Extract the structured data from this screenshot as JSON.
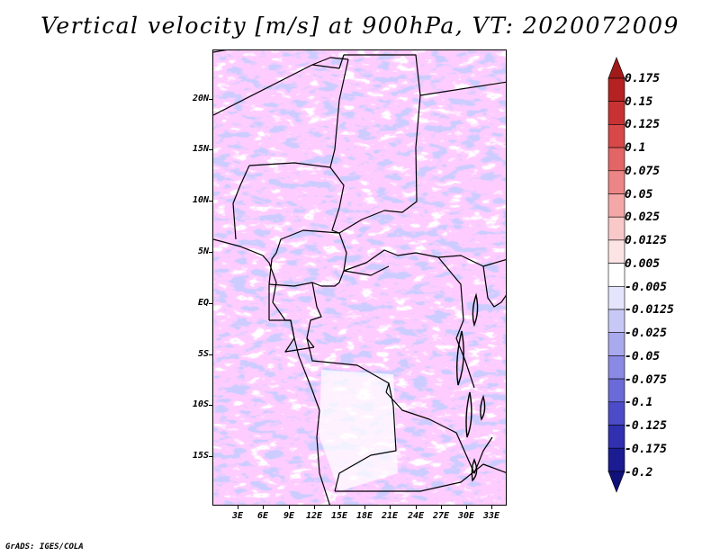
{
  "title": "Vertical velocity [m/s] at 900hPa, VT: 2020072009",
  "credit": "GrADS: IGES/COLA",
  "map": {
    "lat_labels": [
      "20N",
      "15N",
      "10N",
      "5N",
      "EQ",
      "5S",
      "10S",
      "15S"
    ],
    "lon_labels": [
      "3E",
      "6E",
      "9E",
      "12E",
      "15E",
      "18E",
      "21E",
      "24E",
      "27E",
      "30E",
      "33E"
    ]
  },
  "colorbar": {
    "labels": [
      "0.175",
      "0.15",
      "0.125",
      "0.1",
      "0.075",
      "0.05",
      "0.025",
      "0.0125",
      "0.005",
      "-0.005",
      "-0.0125",
      "-0.025",
      "-0.05",
      "-0.075",
      "-0.1",
      "-0.125",
      "-0.175",
      "-0.2"
    ],
    "colors": [
      "#a01a1a",
      "#b52222",
      "#c93232",
      "#d84848",
      "#e36565",
      "#ec8585",
      "#f4a7a7",
      "#f9c8c8",
      "#fde4e4",
      "#ffffff",
      "#e4e4fd",
      "#c8c8f6",
      "#a9a9ee",
      "#8a8ae4",
      "#6a6ad8",
      "#4c4cc8",
      "#3030b0",
      "#1b1b92",
      "#10107a"
    ]
  }
}
